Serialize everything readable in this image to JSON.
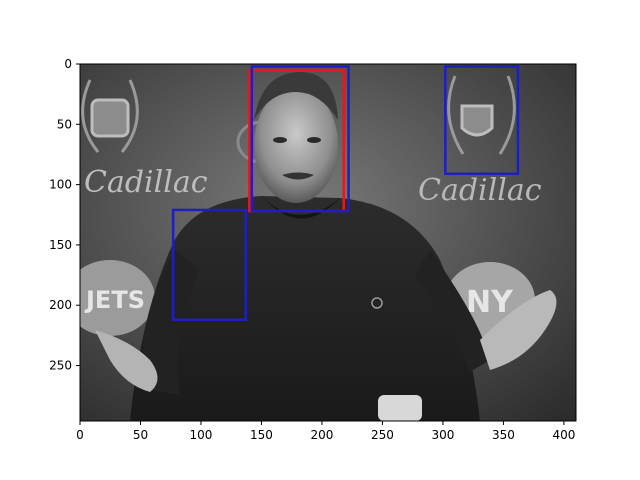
{
  "figure": {
    "image_desc": "grayscale press photo: man in dark sweater gesturing with both hands, Cadillac and Jets logos on backdrop",
    "xlim": [
      0,
      410
    ],
    "ylim": [
      0,
      296
    ],
    "x_ticks": [
      0,
      50,
      100,
      150,
      200,
      250,
      300,
      350,
      400
    ],
    "y_ticks": [
      0,
      50,
      100,
      150,
      200,
      250
    ],
    "boxes": [
      {
        "label": "face-truth",
        "color": "#e31a1c",
        "x0": 140,
        "y0": 5,
        "x1": 218,
        "y1": 122
      },
      {
        "label": "face-detection",
        "color": "#1f1fbf",
        "x0": 142,
        "y0": 2,
        "x1": 222,
        "y1": 122
      },
      {
        "label": "detection-logo",
        "color": "#1f1fbf",
        "x0": 302,
        "y0": 2,
        "x1": 362,
        "y1": 91
      },
      {
        "label": "detection-shoulder",
        "color": "#1f1fbf",
        "x0": 77,
        "y0": 121,
        "x1": 137,
        "y1": 212
      }
    ],
    "backdrop_texts": [
      "Cadillac",
      "Cadillac",
      "JETS",
      "NY"
    ]
  }
}
